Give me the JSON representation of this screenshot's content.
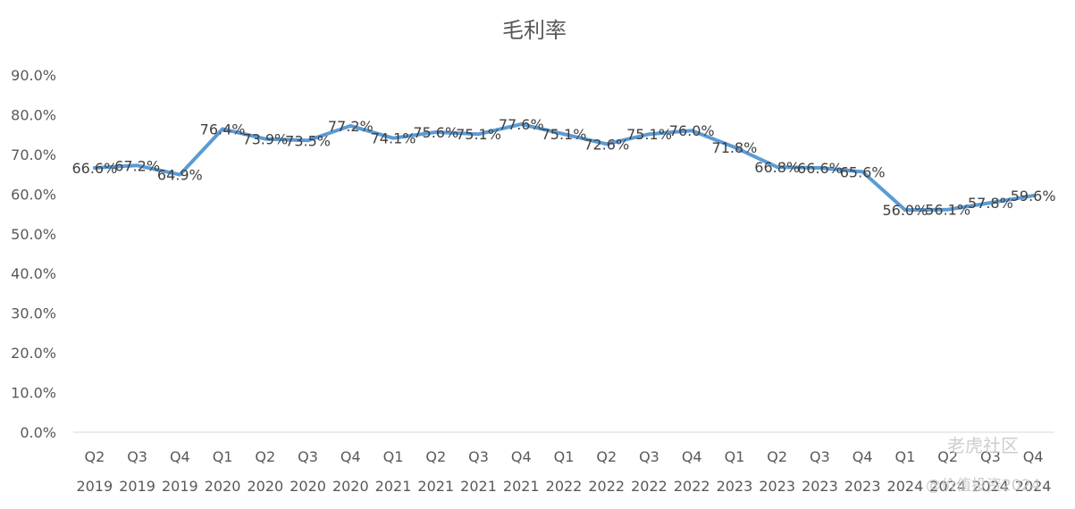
{
  "chart_data": {
    "type": "line",
    "title": "毛利率",
    "xlabel": "",
    "ylabel": "",
    "ylim": [
      0,
      90
    ],
    "yticks": [
      "0.0%",
      "10.0%",
      "20.0%",
      "30.0%",
      "40.0%",
      "50.0%",
      "60.0%",
      "70.0%",
      "80.0%",
      "90.0%"
    ],
    "grid": false,
    "legend": "none",
    "categories": [
      {
        "q": "Q2",
        "y": "2019"
      },
      {
        "q": "Q3",
        "y": "2019"
      },
      {
        "q": "Q4",
        "y": "2019"
      },
      {
        "q": "Q1",
        "y": "2020"
      },
      {
        "q": "Q2",
        "y": "2020"
      },
      {
        "q": "Q3",
        "y": "2020"
      },
      {
        "q": "Q4",
        "y": "2020"
      },
      {
        "q": "Q1",
        "y": "2021"
      },
      {
        "q": "Q2",
        "y": "2021"
      },
      {
        "q": "Q3",
        "y": "2021"
      },
      {
        "q": "Q4",
        "y": "2021"
      },
      {
        "q": "Q1",
        "y": "2022"
      },
      {
        "q": "Q2",
        "y": "2022"
      },
      {
        "q": "Q3",
        "y": "2022"
      },
      {
        "q": "Q4",
        "y": "2022"
      },
      {
        "q": "Q1",
        "y": "2023"
      },
      {
        "q": "Q2",
        "y": "2023"
      },
      {
        "q": "Q3",
        "y": "2023"
      },
      {
        "q": "Q4",
        "y": "2023"
      },
      {
        "q": "Q1",
        "y": "2024"
      },
      {
        "q": "Q2",
        "y": "2024"
      },
      {
        "q": "Q3",
        "y": "2024"
      },
      {
        "q": "Q4",
        "y": "2024"
      }
    ],
    "series": [
      {
        "color": "#5b9bd5",
        "values": [
          66.6,
          67.2,
          64.9,
          76.4,
          73.9,
          73.5,
          77.2,
          74.1,
          75.6,
          75.1,
          77.6,
          75.1,
          72.6,
          75.1,
          76.0,
          71.8,
          66.8,
          66.6,
          65.6,
          56.0,
          56.1,
          57.8,
          59.6
        ],
        "labels": [
          "66.6%",
          "67.2%",
          "64.9%",
          "76.4%",
          "73.9%",
          "73.5%",
          "77.2%",
          "74.1%",
          "75.6%",
          "75.1%",
          "77.6%",
          "75.1%",
          "72.6%",
          "75.1%",
          "76.0%",
          "71.8%",
          "66.8%",
          "66.6%",
          "65.6%",
          "56.0%",
          "56.1%",
          "57.8%",
          "59.6%"
        ]
      }
    ]
  },
  "watermark": {
    "brand": "老虎社区",
    "handle": "@价值投资2024"
  }
}
